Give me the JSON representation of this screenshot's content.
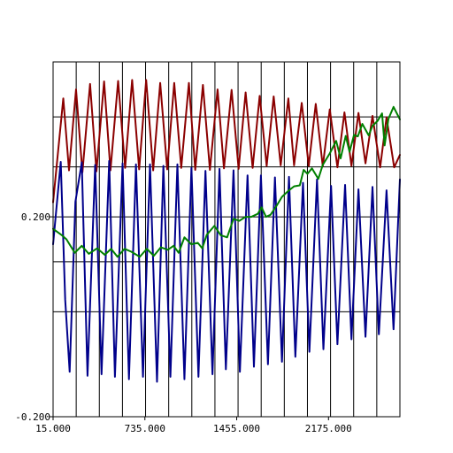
{
  "chart_data": {
    "type": "line",
    "title": "",
    "xlabel": "",
    "ylabel": "",
    "xlim": [
      15,
      2735
    ],
    "ylim": [
      -0.2,
      0.51
    ],
    "x_ticks": [
      {
        "value": 15,
        "label": "15.000"
      },
      {
        "value": 735,
        "label": "735.000"
      },
      {
        "value": 1455,
        "label": "1455.000"
      },
      {
        "value": 2175,
        "label": "2175.000"
      }
    ],
    "y_ticks": [
      {
        "value": -0.2,
        "label": "-0.200"
      },
      {
        "value": 0.2,
        "label": "0.200"
      }
    ],
    "grid": true,
    "vertical_gridlines": 15,
    "horizontal_gridlines": [
      0.01,
      0.11,
      0.3,
      0.4
    ],
    "colors": {
      "red": "#8b0000",
      "blue": "#00008b",
      "green": "#008000",
      "grid": "#000000"
    },
    "series": [
      {
        "color": "#8b0000",
        "values": [
          [
            15,
            0.229
          ],
          [
            95,
            0.437
          ],
          [
            140,
            0.293
          ],
          [
            195,
            0.455
          ],
          [
            245,
            0.289
          ],
          [
            305,
            0.466
          ],
          [
            355,
            0.291
          ],
          [
            415,
            0.471
          ],
          [
            465,
            0.293
          ],
          [
            525,
            0.472
          ],
          [
            580,
            0.298
          ],
          [
            635,
            0.474
          ],
          [
            690,
            0.295
          ],
          [
            745,
            0.474
          ],
          [
            800,
            0.293
          ],
          [
            855,
            0.468
          ],
          [
            910,
            0.295
          ],
          [
            965,
            0.468
          ],
          [
            1020,
            0.298
          ],
          [
            1080,
            0.468
          ],
          [
            1130,
            0.294
          ],
          [
            1190,
            0.464
          ],
          [
            1245,
            0.294
          ],
          [
            1305,
            0.455
          ],
          [
            1355,
            0.297
          ],
          [
            1415,
            0.454
          ],
          [
            1470,
            0.296
          ],
          [
            1525,
            0.449
          ],
          [
            1580,
            0.298
          ],
          [
            1635,
            0.442
          ],
          [
            1690,
            0.302
          ],
          [
            1745,
            0.441
          ],
          [
            1800,
            0.303
          ],
          [
            1860,
            0.437
          ],
          [
            1905,
            0.303
          ],
          [
            1965,
            0.428
          ],
          [
            2020,
            0.302
          ],
          [
            2075,
            0.426
          ],
          [
            2130,
            0.301
          ],
          [
            2185,
            0.415
          ],
          [
            2245,
            0.299
          ],
          [
            2300,
            0.409
          ],
          [
            2355,
            0.302
          ],
          [
            2410,
            0.408
          ],
          [
            2465,
            0.307
          ],
          [
            2520,
            0.402
          ],
          [
            2580,
            0.299
          ],
          [
            2630,
            0.399
          ],
          [
            2690,
            0.299
          ],
          [
            2735,
            0.324
          ]
        ]
      },
      {
        "color": "#00008b",
        "values": [
          [
            15,
            0.145
          ],
          [
            75,
            0.31
          ],
          [
            110,
            0.034
          ],
          [
            145,
            -0.11
          ],
          [
            190,
            0.23
          ],
          [
            240,
            0.309
          ],
          [
            285,
            -0.118
          ],
          [
            345,
            0.304
          ],
          [
            395,
            -0.115
          ],
          [
            455,
            0.312
          ],
          [
            500,
            -0.12
          ],
          [
            560,
            0.307
          ],
          [
            610,
            -0.125
          ],
          [
            665,
            0.305
          ],
          [
            720,
            -0.12
          ],
          [
            775,
            0.305
          ],
          [
            830,
            -0.13
          ],
          [
            880,
            0.302
          ],
          [
            935,
            -0.12
          ],
          [
            990,
            0.305
          ],
          [
            1045,
            -0.125
          ],
          [
            1100,
            0.298
          ],
          [
            1155,
            -0.12
          ],
          [
            1210,
            0.292
          ],
          [
            1265,
            -0.115
          ],
          [
            1320,
            0.296
          ],
          [
            1370,
            -0.105
          ],
          [
            1430,
            0.293
          ],
          [
            1480,
            -0.11
          ],
          [
            1540,
            0.283
          ],
          [
            1590,
            -0.1
          ],
          [
            1645,
            0.283
          ],
          [
            1700,
            -0.095
          ],
          [
            1755,
            0.279
          ],
          [
            1810,
            -0.09
          ],
          [
            1865,
            0.28
          ],
          [
            1915,
            -0.08
          ],
          [
            1975,
            0.268
          ],
          [
            2025,
            -0.07
          ],
          [
            2085,
            0.275
          ],
          [
            2135,
            -0.065
          ],
          [
            2195,
            0.262
          ],
          [
            2245,
            -0.055
          ],
          [
            2305,
            0.264
          ],
          [
            2355,
            -0.045
          ],
          [
            2410,
            0.255
          ],
          [
            2465,
            -0.04
          ],
          [
            2520,
            0.26
          ],
          [
            2570,
            -0.035
          ],
          [
            2630,
            0.253
          ],
          [
            2685,
            -0.025
          ],
          [
            2735,
            0.275
          ]
        ]
      },
      {
        "color": "#008000",
        "values": [
          [
            15,
            0.176
          ],
          [
            80,
            0.164
          ],
          [
            120,
            0.155
          ],
          [
            185,
            0.128
          ],
          [
            240,
            0.142
          ],
          [
            295,
            0.126
          ],
          [
            360,
            0.137
          ],
          [
            420,
            0.124
          ],
          [
            470,
            0.136
          ],
          [
            520,
            0.12
          ],
          [
            575,
            0.136
          ],
          [
            630,
            0.13
          ],
          [
            695,
            0.12
          ],
          [
            750,
            0.136
          ],
          [
            805,
            0.122
          ],
          [
            860,
            0.139
          ],
          [
            915,
            0.134
          ],
          [
            960,
            0.142
          ],
          [
            1000,
            0.128
          ],
          [
            1045,
            0.159
          ],
          [
            1100,
            0.145
          ],
          [
            1150,
            0.148
          ],
          [
            1185,
            0.137
          ],
          [
            1220,
            0.164
          ],
          [
            1280,
            0.182
          ],
          [
            1330,
            0.163
          ],
          [
            1380,
            0.159
          ],
          [
            1430,
            0.196
          ],
          [
            1475,
            0.192
          ],
          [
            1525,
            0.2
          ],
          [
            1570,
            0.2
          ],
          [
            1620,
            0.206
          ],
          [
            1650,
            0.219
          ],
          [
            1685,
            0.2
          ],
          [
            1720,
            0.204
          ],
          [
            1765,
            0.221
          ],
          [
            1810,
            0.24
          ],
          [
            1860,
            0.252
          ],
          [
            1905,
            0.261
          ],
          [
            1950,
            0.263
          ],
          [
            1980,
            0.294
          ],
          [
            2010,
            0.286
          ],
          [
            2045,
            0.297
          ],
          [
            2095,
            0.276
          ],
          [
            2130,
            0.304
          ],
          [
            2185,
            0.327
          ],
          [
            2235,
            0.352
          ],
          [
            2270,
            0.317
          ],
          [
            2310,
            0.362
          ],
          [
            2340,
            0.33
          ],
          [
            2375,
            0.364
          ],
          [
            2405,
            0.361
          ],
          [
            2440,
            0.386
          ],
          [
            2490,
            0.363
          ],
          [
            2520,
            0.382
          ],
          [
            2560,
            0.392
          ],
          [
            2595,
            0.407
          ],
          [
            2615,
            0.343
          ],
          [
            2645,
            0.396
          ],
          [
            2685,
            0.42
          ],
          [
            2735,
            0.395
          ]
        ]
      }
    ]
  }
}
